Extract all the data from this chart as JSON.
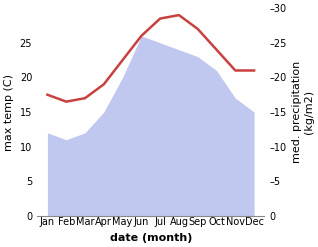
{
  "months": [
    "Jan",
    "Feb",
    "Mar",
    "Apr",
    "May",
    "Jun",
    "Jul",
    "Aug",
    "Sep",
    "Oct",
    "Nov",
    "Dec"
  ],
  "temp": [
    17.5,
    16.5,
    17.0,
    19.0,
    22.5,
    26.0,
    28.5,
    29.0,
    27.0,
    24.0,
    21.0,
    21.0
  ],
  "precip": [
    12.0,
    11.0,
    12.0,
    15.0,
    20.0,
    26.0,
    25.0,
    24.0,
    23.0,
    21.0,
    17.0,
    15.0
  ],
  "temp_color": "#c94040",
  "precip_color": "#c0c8f0",
  "ylabel_left": "max temp (C)",
  "ylabel_right": "med. precipitation\n(kg/m2)",
  "xlabel": "date (month)",
  "ylim": [
    0,
    30
  ],
  "yticks_left": [
    0,
    5,
    10,
    15,
    20,
    25
  ],
  "yticks_right": [
    0,
    5,
    10,
    15,
    20,
    25,
    30
  ],
  "bg_color": "#ffffff",
  "temp_linewidth": 1.8,
  "xlabel_fontsize": 8,
  "ylabel_fontsize": 8,
  "tick_fontsize": 7
}
